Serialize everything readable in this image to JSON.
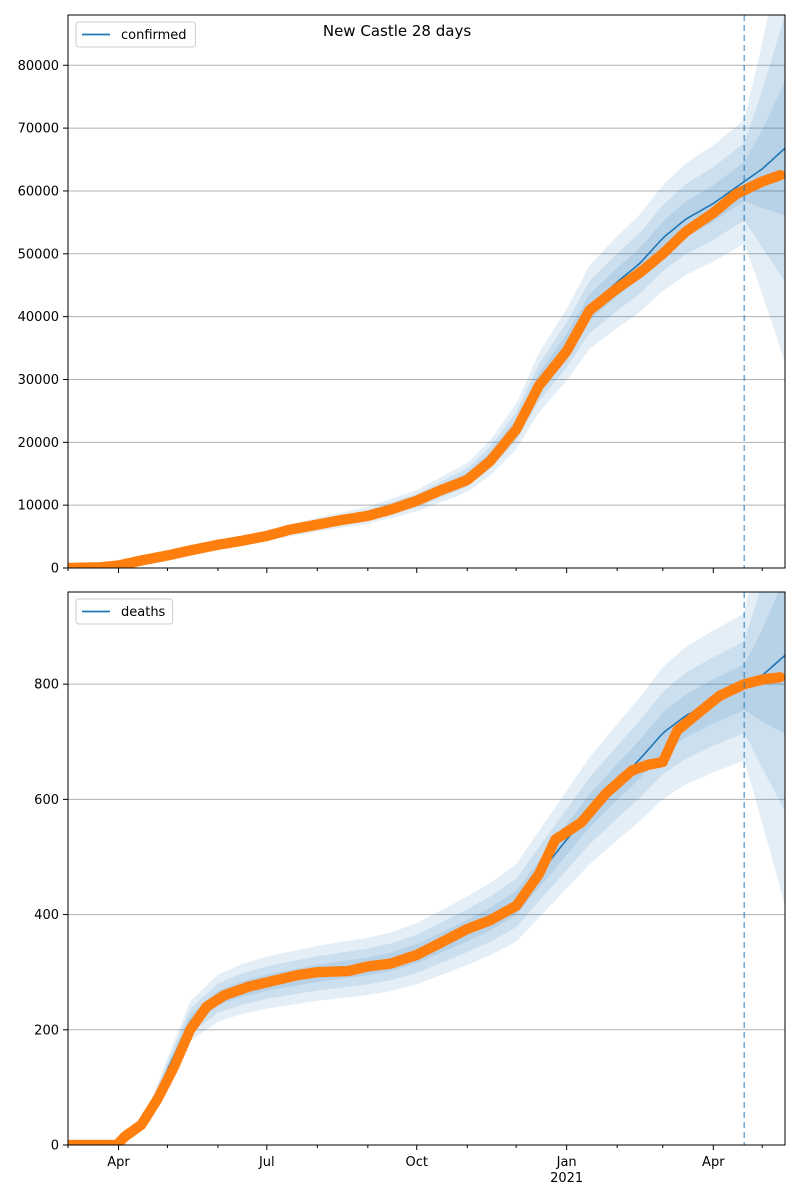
{
  "chart_data": [
    {
      "type": "line",
      "title": "New Castle 28 days",
      "xlabel": "",
      "ylabel": "",
      "legend": {
        "position": "top-left",
        "entries": [
          "confirmed"
        ]
      },
      "grid": {
        "y": true,
        "x": false
      },
      "x_range": [
        "2020-03-01",
        "2021-05-15"
      ],
      "ylim": [
        0,
        88000
      ],
      "y_ticks": [
        0,
        10000,
        20000,
        30000,
        40000,
        50000,
        60000,
        70000,
        80000
      ],
      "forecast_start": "2021-04-20",
      "series": [
        {
          "name": "confirmed",
          "kind": "model",
          "color": "#1f77b4",
          "points": [
            [
              "2020-03-01",
              0
            ],
            [
              "2020-03-20",
              150
            ],
            [
              "2020-04-01",
              450
            ],
            [
              "2020-05-01",
              2000
            ],
            [
              "2020-06-01",
              3700
            ],
            [
              "2020-07-01",
              5200
            ],
            [
              "2020-08-01",
              6900
            ],
            [
              "2020-09-01",
              8400
            ],
            [
              "2020-10-01",
              10700
            ],
            [
              "2020-11-01",
              14400
            ],
            [
              "2020-11-15",
              17500
            ],
            [
              "2020-12-01",
              22500
            ],
            [
              "2020-12-15",
              29500
            ],
            [
              "2021-01-01",
              35500
            ],
            [
              "2021-01-15",
              41500
            ],
            [
              "2021-02-01",
              45500
            ],
            [
              "2021-02-15",
              48500
            ],
            [
              "2021-03-01",
              52500
            ],
            [
              "2021-03-15",
              55500
            ],
            [
              "2021-04-01",
              58000
            ],
            [
              "2021-04-20",
              61500
            ],
            [
              "2021-05-01",
              63500
            ],
            [
              "2021-05-15",
              66800
            ]
          ]
        },
        {
          "name": "",
          "kind": "observed",
          "color": "#ff7f0e",
          "points": [
            [
              "2020-03-01",
              0
            ],
            [
              "2020-03-20",
              100
            ],
            [
              "2020-04-01",
              400
            ],
            [
              "2020-04-15",
              1200
            ],
            [
              "2020-05-01",
              2000
            ],
            [
              "2020-05-15",
              2800
            ],
            [
              "2020-06-01",
              3700
            ],
            [
              "2020-06-15",
              4300
            ],
            [
              "2020-07-01",
              5100
            ],
            [
              "2020-07-15",
              6100
            ],
            [
              "2020-08-01",
              6900
            ],
            [
              "2020-08-15",
              7600
            ],
            [
              "2020-09-01",
              8300
            ],
            [
              "2020-09-15",
              9300
            ],
            [
              "2020-10-01",
              10700
            ],
            [
              "2020-10-15",
              12300
            ],
            [
              "2020-11-01",
              14000
            ],
            [
              "2020-11-15",
              17000
            ],
            [
              "2020-12-01",
              22000
            ],
            [
              "2020-12-15",
              29000
            ],
            [
              "2021-01-01",
              34500
            ],
            [
              "2021-01-15",
              41000
            ],
            [
              "2021-02-01",
              44500
            ],
            [
              "2021-02-15",
              47000
            ],
            [
              "2021-03-01",
              50000
            ],
            [
              "2021-03-15",
              53500
            ],
            [
              "2021-04-01",
              56500
            ],
            [
              "2021-04-15",
              59500
            ],
            [
              "2021-05-01",
              61500
            ],
            [
              "2021-05-12",
              62500
            ]
          ]
        }
      ],
      "bands": {
        "color": "#1f77b4",
        "relative_widths": [
          0.05,
          0.1,
          0.16
        ]
      }
    },
    {
      "type": "line",
      "title": "",
      "xlabel": "",
      "ylabel": "",
      "legend": {
        "position": "top-left",
        "entries": [
          "deaths"
        ]
      },
      "grid": {
        "y": true,
        "x": false
      },
      "x_range": [
        "2020-03-01",
        "2021-05-15"
      ],
      "ylim": [
        0,
        960
      ],
      "y_ticks": [
        0,
        200,
        400,
        600,
        800
      ],
      "forecast_start": "2021-04-20",
      "series": [
        {
          "name": "deaths",
          "kind": "model",
          "color": "#1f77b4",
          "points": [
            [
              "2020-03-01",
              0
            ],
            [
              "2020-03-31",
              0
            ],
            [
              "2020-04-08",
              20
            ],
            [
              "2020-04-20",
              60
            ],
            [
              "2020-05-01",
              130
            ],
            [
              "2020-05-15",
              215
            ],
            [
              "2020-06-01",
              255
            ],
            [
              "2020-06-15",
              270
            ],
            [
              "2020-07-01",
              282
            ],
            [
              "2020-08-01",
              298
            ],
            [
              "2020-09-01",
              310
            ],
            [
              "2020-09-15",
              318
            ],
            [
              "2020-10-01",
              332
            ],
            [
              "2020-10-15",
              350
            ],
            [
              "2020-11-01",
              372
            ],
            [
              "2020-11-15",
              392
            ],
            [
              "2020-12-01",
              420
            ],
            [
              "2020-12-15",
              470
            ],
            [
              "2021-01-01",
              530
            ],
            [
              "2021-01-15",
              580
            ],
            [
              "2021-02-01",
              630
            ],
            [
              "2021-02-15",
              670
            ],
            [
              "2021-03-01",
              715
            ],
            [
              "2021-03-15",
              745
            ],
            [
              "2021-04-01",
              770
            ],
            [
              "2021-04-20",
              795
            ],
            [
              "2021-05-01",
              815
            ],
            [
              "2021-05-15",
              850
            ]
          ]
        },
        {
          "name": "",
          "kind": "observed",
          "color": "#ff7f0e",
          "points": [
            [
              "2020-03-01",
              0
            ],
            [
              "2020-03-31",
              0
            ],
            [
              "2020-04-05",
              15
            ],
            [
              "2020-04-15",
              35
            ],
            [
              "2020-04-25",
              80
            ],
            [
              "2020-05-05",
              135
            ],
            [
              "2020-05-15",
              200
            ],
            [
              "2020-05-25",
              240
            ],
            [
              "2020-06-05",
              260
            ],
            [
              "2020-06-20",
              275
            ],
            [
              "2020-07-05",
              285
            ],
            [
              "2020-07-20",
              295
            ],
            [
              "2020-08-01",
              300
            ],
            [
              "2020-08-20",
              302
            ],
            [
              "2020-09-01",
              310
            ],
            [
              "2020-09-15",
              315
            ],
            [
              "2020-10-01",
              330
            ],
            [
              "2020-10-15",
              350
            ],
            [
              "2020-11-01",
              375
            ],
            [
              "2020-11-15",
              390
            ],
            [
              "2020-12-01",
              415
            ],
            [
              "2020-12-15",
              470
            ],
            [
              "2020-12-25",
              530
            ],
            [
              "2021-01-10",
              560
            ],
            [
              "2021-01-25",
              610
            ],
            [
              "2021-02-10",
              650
            ],
            [
              "2021-02-20",
              660
            ],
            [
              "2021-03-01",
              665
            ],
            [
              "2021-03-10",
              720
            ],
            [
              "2021-03-25",
              755
            ],
            [
              "2021-04-05",
              780
            ],
            [
              "2021-04-20",
              800
            ],
            [
              "2021-05-01",
              808
            ],
            [
              "2021-05-12",
              812
            ]
          ]
        }
      ],
      "bands": {
        "color": "#1f77b4",
        "relative_widths": [
          0.05,
          0.1,
          0.16
        ]
      }
    }
  ],
  "x_ticks_major": [
    {
      "date": "2020-04-01",
      "label": "Apr"
    },
    {
      "date": "2020-07-01",
      "label": "Jul"
    },
    {
      "date": "2020-10-01",
      "label": "Oct"
    },
    {
      "date": "2021-01-01",
      "label": "Jan",
      "sublabel": "2021"
    },
    {
      "date": "2021-04-01",
      "label": "Apr"
    }
  ]
}
